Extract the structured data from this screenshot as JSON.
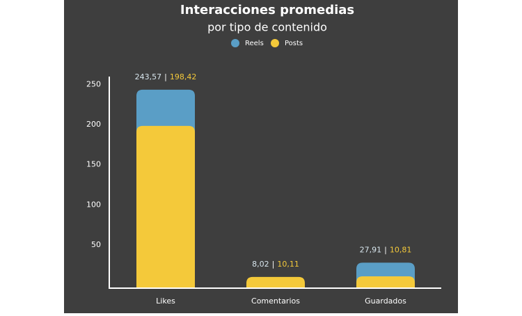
{
  "chart_data": {
    "type": "overlap-bar",
    "title": "Interacciones promedias",
    "subtitle": "por tipo de contenido",
    "categories": [
      "Likes",
      "Comentarios",
      "Guardados"
    ],
    "series": [
      {
        "name": "Reels",
        "color": "#5a9ec6",
        "values": [
          243.57,
          8.02,
          27.91
        ],
        "value_labels": [
          "243,57",
          "8,02",
          "27,91"
        ]
      },
      {
        "name": "Posts",
        "color": "#f4c93a",
        "values": [
          198.42,
          10.11,
          10.81
        ],
        "value_labels": [
          "198,42",
          "10,11",
          "10,81"
        ]
      }
    ],
    "label_separator": "|",
    "ylim": [
      0,
      250
    ],
    "yticks": [
      50,
      100,
      150,
      200,
      250
    ],
    "grid": false,
    "legend": "top"
  }
}
